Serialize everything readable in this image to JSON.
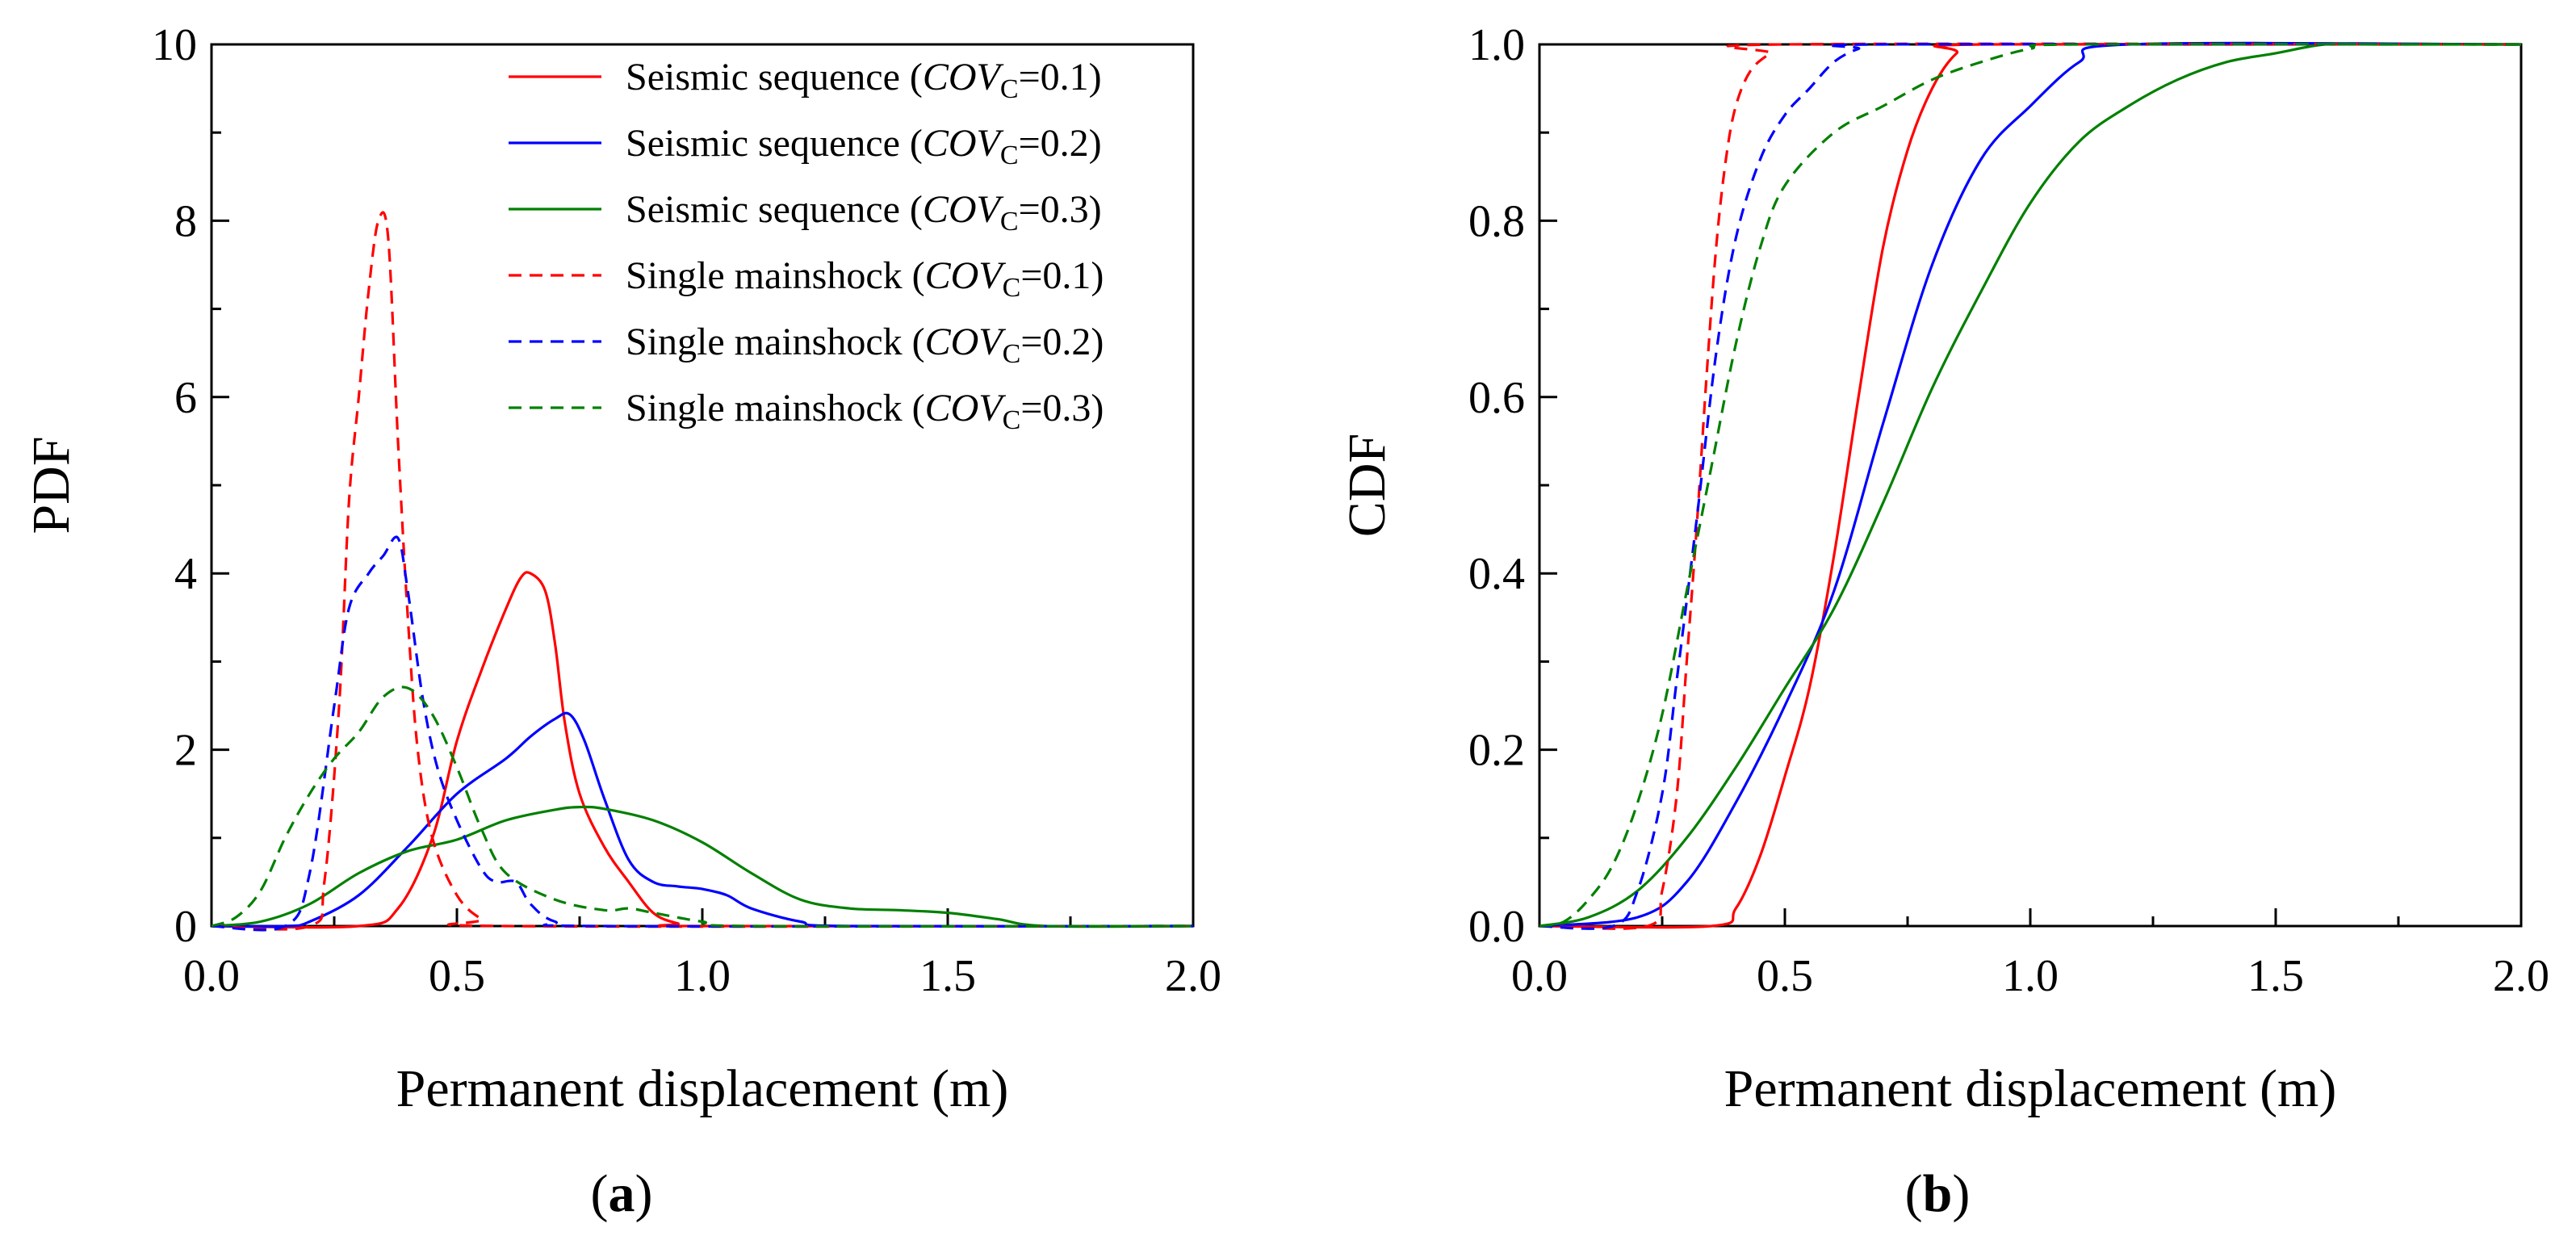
{
  "chart_data": [
    {
      "type": "line",
      "panel_label": "a",
      "title": "",
      "xlabel": "Permanent displacement (m)",
      "ylabel": "PDF",
      "xlim": [
        0,
        2
      ],
      "ylim": [
        0,
        10
      ],
      "xticks": [
        "0.0",
        "0.5",
        "1.0",
        "1.5",
        "2.0"
      ],
      "yticks": [
        "0",
        "2",
        "4",
        "6",
        "8",
        "10"
      ],
      "grid": false,
      "legend_position": "top-right",
      "series": [
        {
          "name": "Seismic sequence (COVC=0.1)",
          "legend_prefix": "Seismic sequence (",
          "legend_var": "COV",
          "legend_sub": "C",
          "legend_suffix": "=0.1)",
          "color": "#ff0000",
          "dash": "solid",
          "x": [
            0,
            0.3,
            0.38,
            0.45,
            0.5,
            0.55,
            0.6,
            0.63,
            0.65,
            0.68,
            0.7,
            0.72,
            0.75,
            0.8,
            0.85,
            0.9,
            0.95,
            1.0,
            2.0
          ],
          "y": [
            0,
            0,
            0.2,
            1.0,
            2.1,
            2.9,
            3.6,
            3.95,
            4.0,
            3.8,
            3.2,
            2.3,
            1.5,
            0.9,
            0.5,
            0.15,
            0.03,
            0,
            0
          ]
        },
        {
          "name": "Seismic sequence (COVC=0.2)",
          "legend_prefix": "Seismic sequence (",
          "legend_var": "COV",
          "legend_sub": "C",
          "legend_suffix": "=0.2)",
          "color": "#0000ff",
          "dash": "solid",
          "x": [
            0,
            0.15,
            0.2,
            0.3,
            0.4,
            0.5,
            0.6,
            0.65,
            0.7,
            0.73,
            0.76,
            0.8,
            0.85,
            0.9,
            0.95,
            1.0,
            1.05,
            1.1,
            1.2,
            1.3,
            2.0
          ],
          "y": [
            0,
            0,
            0.05,
            0.35,
            0.9,
            1.5,
            1.9,
            2.15,
            2.35,
            2.4,
            2.1,
            1.45,
            0.75,
            0.5,
            0.45,
            0.42,
            0.35,
            0.2,
            0.05,
            0,
            0
          ]
        },
        {
          "name": "Seismic sequence (COVC=0.3)",
          "legend_prefix": "Seismic sequence (",
          "legend_var": "COV",
          "legend_sub": "C",
          "legend_suffix": "=0.3)",
          "color": "#008000",
          "dash": "solid",
          "x": [
            0,
            0.1,
            0.2,
            0.3,
            0.4,
            0.5,
            0.6,
            0.7,
            0.75,
            0.8,
            0.9,
            1.0,
            1.1,
            1.2,
            1.3,
            1.4,
            1.5,
            1.6,
            1.7,
            2.0
          ],
          "y": [
            0,
            0.05,
            0.25,
            0.6,
            0.85,
            0.98,
            1.2,
            1.32,
            1.35,
            1.33,
            1.2,
            0.95,
            0.6,
            0.3,
            0.2,
            0.18,
            0.15,
            0.08,
            0,
            0
          ]
        },
        {
          "name": "Single mainshock (COVC=0.1)",
          "legend_prefix": "Single mainshock (",
          "legend_var": "COV",
          "legend_sub": "C",
          "legend_suffix": "=0.1)",
          "color": "#ff0000",
          "dash": "dashed",
          "x": [
            0,
            0.2,
            0.23,
            0.26,
            0.28,
            0.3,
            0.32,
            0.34,
            0.36,
            0.38,
            0.4,
            0.42,
            0.45,
            0.5,
            0.55,
            0.6,
            2.0
          ],
          "y": [
            0,
            0,
            0.5,
            2.5,
            4.8,
            6.0,
            7.2,
            8.0,
            7.8,
            5.5,
            3.5,
            2.0,
            1.0,
            0.35,
            0.08,
            0,
            0
          ]
        },
        {
          "name": "Single mainshock (COVC=0.2)",
          "legend_prefix": "Single mainshock (",
          "legend_var": "COV",
          "legend_sub": "C",
          "legend_suffix": "=0.2)",
          "color": "#0000ff",
          "dash": "dashed",
          "x": [
            0,
            0.15,
            0.2,
            0.25,
            0.28,
            0.32,
            0.35,
            0.38,
            0.4,
            0.43,
            0.46,
            0.5,
            0.55,
            0.58,
            0.62,
            0.65,
            0.7,
            0.8,
            2.0
          ],
          "y": [
            0,
            0,
            0.6,
            2.5,
            3.6,
            4.0,
            4.2,
            4.4,
            3.8,
            2.6,
            1.8,
            1.2,
            0.65,
            0.5,
            0.5,
            0.25,
            0.05,
            0,
            0
          ]
        },
        {
          "name": "Single mainshock (COVC=0.3)",
          "legend_prefix": "Single mainshock (",
          "legend_var": "COV",
          "legend_sub": "C",
          "legend_suffix": "=0.3)",
          "color": "#008000",
          "dash": "dashed",
          "x": [
            0,
            0.05,
            0.1,
            0.15,
            0.2,
            0.25,
            0.3,
            0.35,
            0.4,
            0.45,
            0.5,
            0.55,
            0.6,
            0.7,
            0.8,
            0.85,
            0.9,
            1.0,
            1.1,
            2.0
          ],
          "y": [
            0,
            0.1,
            0.4,
            1.0,
            1.5,
            1.9,
            2.2,
            2.6,
            2.7,
            2.4,
            1.8,
            1.1,
            0.6,
            0.3,
            0.18,
            0.2,
            0.15,
            0.05,
            0,
            0
          ]
        }
      ]
    },
    {
      "type": "line",
      "panel_label": "b",
      "title": "",
      "xlabel": "Permanent displacement (m)",
      "ylabel": "CDF",
      "xlim": [
        0,
        2
      ],
      "ylim": [
        0,
        1
      ],
      "xticks": [
        "0.0",
        "0.5",
        "1.0",
        "1.5",
        "2.0"
      ],
      "yticks": [
        "0.0",
        "0.2",
        "0.4",
        "0.6",
        "0.8",
        "1.0"
      ],
      "grid": false,
      "legend_position": "none",
      "series": [
        {
          "name": "Seismic sequence (COVC=0.1)",
          "color": "#ff0000",
          "dash": "solid",
          "x": [
            0,
            0.35,
            0.4,
            0.45,
            0.5,
            0.55,
            0.6,
            0.65,
            0.7,
            0.75,
            0.8,
            0.85,
            0.9,
            2.0
          ],
          "y": [
            0,
            0,
            0.02,
            0.08,
            0.17,
            0.27,
            0.42,
            0.6,
            0.77,
            0.88,
            0.95,
            0.99,
            1.0,
            1.0
          ]
        },
        {
          "name": "Seismic sequence (COVC=0.2)",
          "color": "#0000ff",
          "dash": "solid",
          "x": [
            0,
            0.2,
            0.3,
            0.4,
            0.5,
            0.6,
            0.7,
            0.8,
            0.9,
            1.0,
            1.1,
            1.2,
            2.0
          ],
          "y": [
            0,
            0.01,
            0.05,
            0.14,
            0.25,
            0.38,
            0.57,
            0.75,
            0.87,
            0.93,
            0.98,
            1.0,
            1.0
          ]
        },
        {
          "name": "Seismic sequence (COVC=0.3)",
          "color": "#008000",
          "dash": "solid",
          "x": [
            0,
            0.1,
            0.2,
            0.3,
            0.4,
            0.5,
            0.6,
            0.7,
            0.8,
            0.9,
            1.0,
            1.1,
            1.2,
            1.3,
            1.4,
            1.5,
            1.6,
            1.7,
            2.0
          ],
          "y": [
            0,
            0.01,
            0.04,
            0.1,
            0.18,
            0.27,
            0.36,
            0.48,
            0.61,
            0.72,
            0.82,
            0.89,
            0.93,
            0.96,
            0.98,
            0.99,
            1.0,
            1.0,
            1.0
          ]
        },
        {
          "name": "Single mainshock (COVC=0.1)",
          "color": "#ff0000",
          "dash": "dashed",
          "x": [
            0,
            0.22,
            0.25,
            0.28,
            0.3,
            0.32,
            0.34,
            0.36,
            0.38,
            0.4,
            0.43,
            0.47,
            0.5,
            2.0
          ],
          "y": [
            0,
            0,
            0.04,
            0.15,
            0.3,
            0.45,
            0.62,
            0.77,
            0.87,
            0.93,
            0.97,
            0.99,
            1.0,
            1.0
          ]
        },
        {
          "name": "Single mainshock (COVC=0.2)",
          "color": "#0000ff",
          "dash": "dashed",
          "x": [
            0,
            0.15,
            0.2,
            0.25,
            0.28,
            0.32,
            0.36,
            0.4,
            0.45,
            0.5,
            0.55,
            0.6,
            0.65,
            0.7,
            2.0
          ],
          "y": [
            0,
            0,
            0.04,
            0.15,
            0.28,
            0.46,
            0.65,
            0.78,
            0.87,
            0.92,
            0.95,
            0.98,
            0.995,
            1.0,
            1.0
          ]
        },
        {
          "name": "Single mainshock (COVC=0.3)",
          "color": "#008000",
          "dash": "dashed",
          "x": [
            0,
            0.05,
            0.1,
            0.15,
            0.2,
            0.25,
            0.3,
            0.35,
            0.4,
            0.45,
            0.5,
            0.6,
            0.7,
            0.8,
            0.9,
            1.0,
            1.1,
            2.0
          ],
          "y": [
            0,
            0.005,
            0.03,
            0.07,
            0.14,
            0.24,
            0.38,
            0.52,
            0.66,
            0.77,
            0.84,
            0.9,
            0.93,
            0.96,
            0.98,
            0.995,
            1.0,
            1.0
          ]
        }
      ]
    }
  ]
}
